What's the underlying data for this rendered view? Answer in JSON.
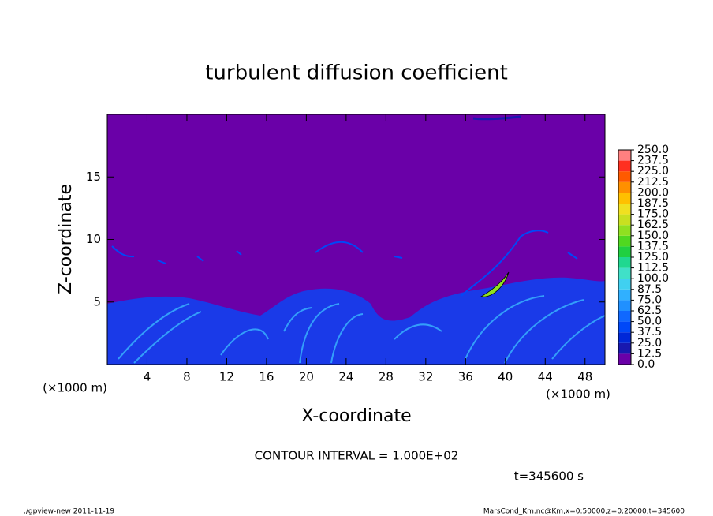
{
  "chart_data": {
    "type": "contour",
    "title": "turbulent diffusion coefficient",
    "xlabel": "X-coordinate",
    "ylabel": "Z-coordinate",
    "xunit": "(×1000 m)",
    "yunit": "(×1000 m)",
    "xlim": [
      0,
      50
    ],
    "ylim": [
      0,
      20
    ],
    "xticks": [
      4,
      8,
      12,
      16,
      20,
      24,
      28,
      32,
      36,
      40,
      44,
      48
    ],
    "yticks": [
      5,
      10,
      15
    ],
    "colorbar": {
      "levels": [
        {
          "value": 0,
          "label": "0.0"
        },
        {
          "value": 12.5,
          "label": "12.5"
        },
        {
          "value": 25,
          "label": "25.0"
        },
        {
          "value": 37.5,
          "label": "37.5"
        },
        {
          "value": 50,
          "label": "50.0"
        },
        {
          "value": 62.5,
          "label": "62.5"
        },
        {
          "value": 75,
          "label": "75.0"
        },
        {
          "value": 87.5,
          "label": "87.5"
        },
        {
          "value": 100,
          "label": "100.0"
        },
        {
          "value": 112.5,
          "label": "112.5"
        },
        {
          "value": 125,
          "label": "125.0"
        },
        {
          "value": 137.5,
          "label": "137.5"
        },
        {
          "value": 150,
          "label": "150.0"
        },
        {
          "value": 162.5,
          "label": "162.5"
        },
        {
          "value": 175,
          "label": "175.0"
        },
        {
          "value": 187.5,
          "label": "187.5"
        },
        {
          "value": 200,
          "label": "200.0"
        },
        {
          "value": 212.5,
          "label": "212.5"
        },
        {
          "value": 225,
          "label": "225.0"
        },
        {
          "value": 237.5,
          "label": "237.5"
        },
        {
          "value": 250,
          "label": "250.0"
        }
      ],
      "colors": [
        "#6a00a8",
        "#1818b0",
        "#0028d8",
        "#0048f8",
        "#1068ff",
        "#2090ff",
        "#30b0ff",
        "#40d0f0",
        "#40e0c8",
        "#20d890",
        "#20d040",
        "#50d820",
        "#90e020",
        "#c8e020",
        "#f0e020",
        "#ffc000",
        "#ff9000",
        "#ff5a00",
        "#ff3020",
        "#ff8080"
      ]
    },
    "contour_note": "CONTOUR INTERVAL = 1.000E+02",
    "time_label": "t=345600 s",
    "footer_left": "./gpview-new  2011-11-19",
    "footer_right": "MarsCond_Km.nc@Km,x=0:50000,z=0:20000,t=345600"
  }
}
